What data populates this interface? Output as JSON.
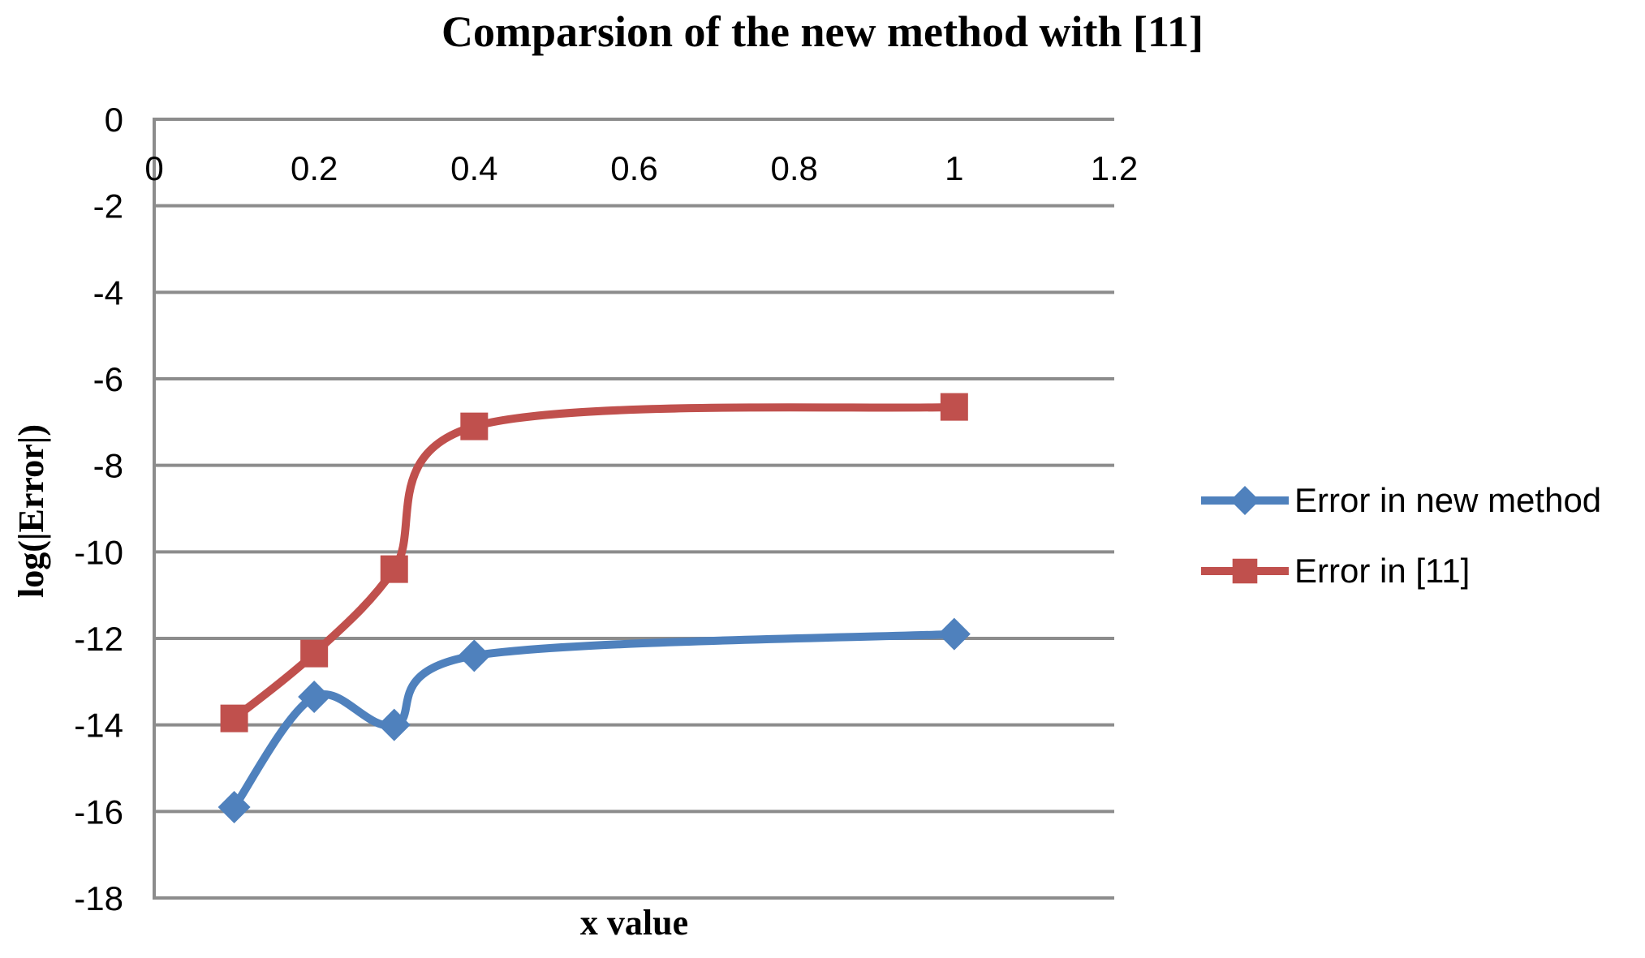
{
  "chart_data": {
    "type": "line",
    "title": "Comparsion of the new method with [11]",
    "xlabel": "x value",
    "ylabel": "log(|Error|)",
    "xlim": [
      0,
      1.2
    ],
    "ylim": [
      -18,
      0
    ],
    "grid": "horizontal",
    "legend_position": "right",
    "colors": {
      "background": "#FFFFFF",
      "gridline": "#8C8C8C",
      "axis": "#8C8C8C",
      "text": "#000000"
    },
    "x_ticks": [
      {
        "value": 0,
        "label": "0"
      },
      {
        "value": 0.2,
        "label": "0.2"
      },
      {
        "value": 0.4,
        "label": "0.4"
      },
      {
        "value": 0.6,
        "label": "0.6"
      },
      {
        "value": 0.8,
        "label": "0.8"
      },
      {
        "value": 1,
        "label": "1"
      },
      {
        "value": 1.2,
        "label": "1.2"
      }
    ],
    "y_ticks": [
      {
        "value": 0,
        "label": "0"
      },
      {
        "value": -2,
        "label": "-2"
      },
      {
        "value": -4,
        "label": "-4"
      },
      {
        "value": -6,
        "label": "-6"
      },
      {
        "value": -8,
        "label": "-8"
      },
      {
        "value": -10,
        "label": "-10"
      },
      {
        "value": -12,
        "label": "-12"
      },
      {
        "value": -14,
        "label": "-14"
      },
      {
        "value": -16,
        "label": "-16"
      },
      {
        "value": -18,
        "label": "-18"
      }
    ],
    "series": [
      {
        "name": "Error in new method",
        "color": "#4F81BD",
        "marker": "diamond",
        "smooth": true,
        "x": [
          0.1,
          0.2,
          0.3,
          0.4,
          1
        ],
        "y": [
          -15.9,
          -13.35,
          -14.0,
          -12.4,
          -11.9
        ]
      },
      {
        "name": "Error in [11]",
        "color": "#C0504D",
        "marker": "square",
        "smooth": true,
        "x": [
          0.1,
          0.2,
          0.3,
          0.4,
          1
        ],
        "y": [
          -13.85,
          -12.35,
          -10.4,
          -7.1,
          -6.65
        ]
      }
    ]
  }
}
